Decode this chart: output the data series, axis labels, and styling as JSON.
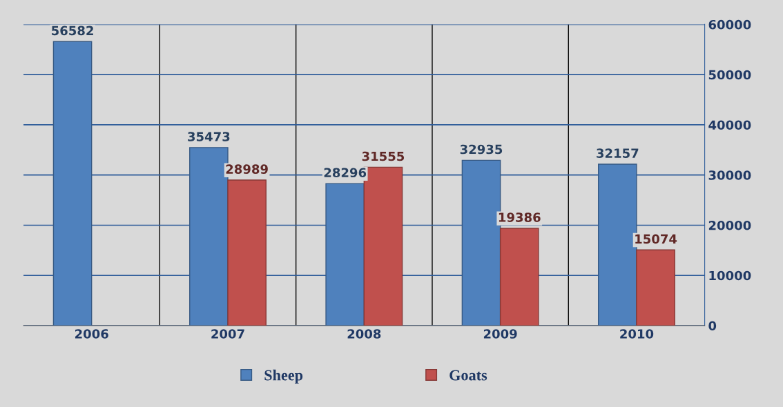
{
  "chart_data": {
    "type": "bar",
    "categories": [
      "2006",
      "2007",
      "2008",
      "2009",
      "2010"
    ],
    "series": [
      {
        "name": "Sheep",
        "color": "#4f81bd",
        "values": [
          56582,
          35473,
          28296,
          32935,
          32157
        ]
      },
      {
        "name": "Goats",
        "color": "#c0504d",
        "values": [
          null,
          28989,
          31555,
          19386,
          15074
        ]
      }
    ],
    "ylim": [
      0,
      60000
    ],
    "yticks": [
      0,
      10000,
      20000,
      30000,
      40000,
      50000,
      60000
    ],
    "grid": true,
    "legend": "bottom",
    "data_labels": true
  }
}
